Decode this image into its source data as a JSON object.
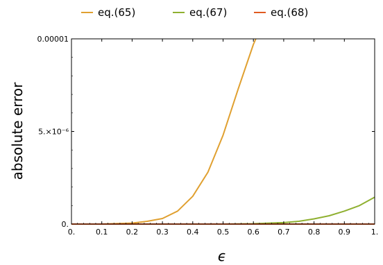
{
  "chart_data": {
    "type": "line",
    "xlabel": "ϵ",
    "ylabel": "absolute error",
    "xlim": [
      0,
      1
    ],
    "ylim": [
      0,
      1e-05
    ],
    "x_ticks": [
      {
        "value": 0,
        "label": "0."
      },
      {
        "value": 0.1,
        "label": "0.1"
      },
      {
        "value": 0.2,
        "label": "0.2"
      },
      {
        "value": 0.3,
        "label": "0.3"
      },
      {
        "value": 0.4,
        "label": "0.4"
      },
      {
        "value": 0.5,
        "label": "0.5"
      },
      {
        "value": 0.6,
        "label": "0.6"
      },
      {
        "value": 0.7,
        "label": "0.7"
      },
      {
        "value": 0.8,
        "label": "0.8"
      },
      {
        "value": 0.9,
        "label": "0.9"
      },
      {
        "value": 1.0,
        "label": "1."
      }
    ],
    "y_ticks": [
      {
        "value": 0,
        "label": "0."
      },
      {
        "value": 5e-06,
        "label": "5.×10⁻⁶"
      },
      {
        "value": 1e-05,
        "label": "0.00001"
      }
    ],
    "grid": false,
    "legend_position": "top-center",
    "series": [
      {
        "name": "eq.(65)",
        "color": "#e0a030",
        "x": [
          0.0,
          0.1,
          0.2,
          0.25,
          0.3,
          0.35,
          0.4,
          0.45,
          0.5,
          0.55,
          0.6,
          0.608
        ],
        "y": [
          0.0,
          0.0,
          5e-08,
          1.5e-07,
          3e-07,
          7e-07,
          1.5e-06,
          2.8e-06,
          4.8e-06,
          7.3e-06,
          9.7e-06,
          1e-05
        ]
      },
      {
        "name": "eq.(67)",
        "color": "#8fb030",
        "x": [
          0.0,
          0.5,
          0.6,
          0.7,
          0.75,
          0.8,
          0.85,
          0.9,
          0.95,
          1.0
        ],
        "y": [
          0.0,
          0.0,
          2e-08,
          8e-08,
          1.5e-07,
          2.8e-07,
          4.5e-07,
          7e-07,
          1e-06,
          1.45e-06
        ]
      },
      {
        "name": "eq.(68)",
        "color": "#e05a20",
        "x": [
          0.0,
          0.5,
          1.0
        ],
        "y": [
          0.0,
          0.0,
          0.0
        ]
      }
    ]
  }
}
